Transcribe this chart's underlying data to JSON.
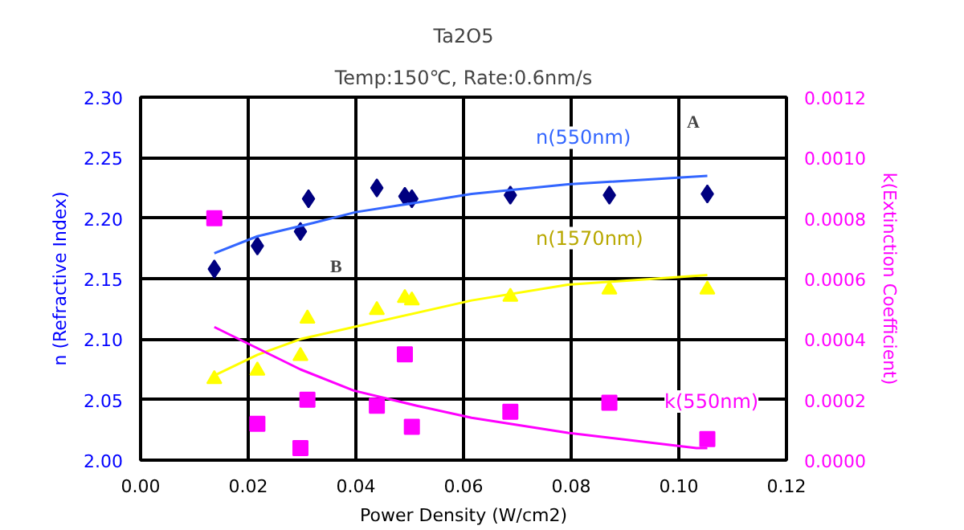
{
  "chart_data": {
    "type": "scatter",
    "title": "Ta2O5",
    "subtitle": "Temp:150℃, Rate:0.6nm/s",
    "xlabel": "Power Density (W/cm2)",
    "ylabel": "n (Refractive Index)",
    "y2label": "k(Extinction Coefficient)",
    "xlim": [
      0,
      0.12
    ],
    "xticks": [
      {
        "value": 0,
        "label": "0.00"
      },
      {
        "value": 0.02,
        "label": "0.02"
      },
      {
        "value": 0.04,
        "label": "0.04"
      },
      {
        "value": 0.06,
        "label": "0.06"
      },
      {
        "value": 0.08,
        "label": "0.08"
      },
      {
        "value": 0.1,
        "label": "0.10"
      },
      {
        "value": 0.12,
        "label": "0.12"
      }
    ],
    "ylim": [
      2.0,
      2.3
    ],
    "yticks": [
      {
        "value": 2.0,
        "label": "2.00"
      },
      {
        "value": 2.05,
        "label": "2.05"
      },
      {
        "value": 2.1,
        "label": "2.10"
      },
      {
        "value": 2.15,
        "label": "2.15"
      },
      {
        "value": 2.2,
        "label": "2.20"
      },
      {
        "value": 2.25,
        "label": "2.25"
      },
      {
        "value": 2.3,
        "label": "2.30"
      }
    ],
    "y2lim": [
      0,
      0.0012
    ],
    "y2ticks": [
      {
        "value": 0,
        "label": "0.0000"
      },
      {
        "value": 0.0002,
        "label": "0.0002"
      },
      {
        "value": 0.0004,
        "label": "0.0004"
      },
      {
        "value": 0.0006,
        "label": "0.0006"
      },
      {
        "value": 0.0008,
        "label": "0.0008"
      },
      {
        "value": 0.001,
        "label": "0.0010"
      },
      {
        "value": 0.0012,
        "label": "0.0012"
      }
    ],
    "grid": true,
    "series": [
      {
        "marker": "diamond",
        "color": "#000080",
        "x": [
          0.0137,
          0.0217,
          0.0297,
          0.0312,
          0.0439,
          0.0491,
          0.0504,
          0.0687,
          0.0871,
          0.1053
        ],
        "values": [
          2.158,
          2.177,
          2.189,
          2.216,
          2.225,
          2.218,
          2.216,
          2.219,
          2.219,
          2.22
        ]
      },
      {
        "type": "line",
        "name": "n(550nm)",
        "color": "#3366ff",
        "x": [
          0.0137,
          0.0217,
          0.032,
          0.04,
          0.0615,
          0.0794,
          0.1053
        ],
        "values": [
          2.171,
          2.185,
          2.196,
          2.205,
          2.22,
          2.228,
          2.235
        ]
      },
      {
        "marker": "triangle",
        "color": "#ffff00",
        "x": [
          0.0137,
          0.0217,
          0.0297,
          0.031,
          0.0439,
          0.0491,
          0.0504,
          0.0687,
          0.0871,
          0.1053
        ],
        "values": [
          2.067,
          2.074,
          2.086,
          2.117,
          2.124,
          2.134,
          2.132,
          2.135,
          2.141,
          2.141
        ]
      },
      {
        "type": "line",
        "name": "n(1570nm)",
        "color": "#ffff00",
        "x": [
          0.0137,
          0.0217,
          0.0297,
          0.0615,
          0.0794,
          0.1053
        ],
        "values": [
          2.07,
          2.087,
          2.1,
          2.132,
          2.145,
          2.153
        ]
      },
      {
        "marker": "square",
        "axis": "y2",
        "color": "#ff00ff",
        "x": [
          0.0137,
          0.0217,
          0.0297,
          0.031,
          0.0439,
          0.0491,
          0.0504,
          0.0687,
          0.0871,
          0.1053
        ],
        "values": [
          0.0008,
          0.00012,
          4e-05,
          0.0002,
          0.00018,
          0.00035,
          0.00011,
          0.00016,
          0.00019,
          7e-05
        ]
      },
      {
        "type": "line",
        "name": "k(550nm)",
        "axis": "y2",
        "color": "#ff00ff",
        "x": [
          0.0137,
          0.0297,
          0.0396,
          0.0513,
          0.0615,
          0.0794,
          0.1033,
          0.1053
        ],
        "values": [
          0.00044,
          0.0003,
          0.00023,
          0.00018,
          0.00014,
          9e-05,
          4e-05,
          4e-05
        ]
      }
    ],
    "annotations": [
      "A",
      "B"
    ]
  }
}
